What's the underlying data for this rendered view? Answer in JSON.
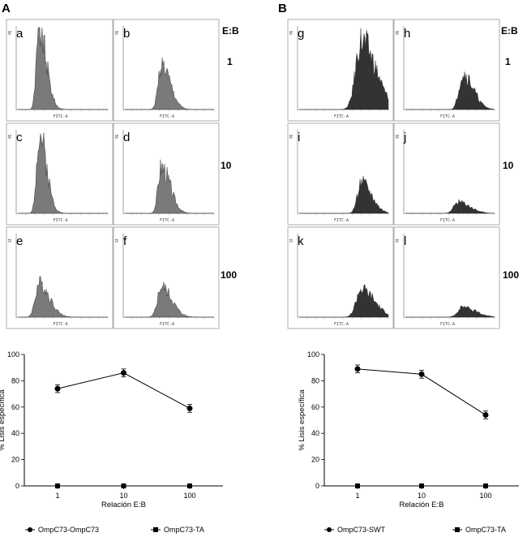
{
  "panels": {
    "A": "A",
    "B": "B"
  },
  "eb_header": "E:B",
  "ratios": [
    "1",
    "10",
    "100"
  ],
  "histograms": {
    "A": [
      {
        "letter": "a",
        "ymax": "50",
        "xlabel": "FITC-A",
        "color": "#7a7a7a",
        "level": 1.0,
        "pos": 0.25,
        "width": 0.05
      },
      {
        "letter": "b",
        "ymax": "50",
        "xlabel": "FITC-A",
        "color": "#7a7a7a",
        "level": 0.55,
        "pos": 0.42,
        "width": 0.06
      },
      {
        "letter": "c",
        "ymax": "50",
        "xlabel": "FITC-A",
        "color": "#7a7a7a",
        "level": 1.0,
        "pos": 0.25,
        "width": 0.05
      },
      {
        "letter": "d",
        "ymax": "50",
        "xlabel": "FITC-A",
        "color": "#7a7a7a",
        "level": 0.58,
        "pos": 0.42,
        "width": 0.06
      },
      {
        "letter": "e",
        "ymax": "15",
        "xlabel": "FITC-A",
        "color": "#7a7a7a",
        "level": 0.42,
        "pos": 0.25,
        "width": 0.07
      },
      {
        "letter": "f",
        "ymax": "15",
        "xlabel": "FITC-A",
        "color": "#7a7a7a",
        "level": 0.38,
        "pos": 0.42,
        "width": 0.07
      }
    ],
    "B": [
      {
        "letter": "g",
        "ymax": "50",
        "xlabel": "FITC-A",
        "color": "#333333",
        "level": 0.85,
        "pos": 0.7,
        "width": 0.1
      },
      {
        "letter": "h",
        "ymax": "50",
        "xlabel": "FITC-A",
        "color": "#333333",
        "level": 0.45,
        "pos": 0.65,
        "width": 0.07
      },
      {
        "letter": "i",
        "ymax": "50",
        "xlabel": "FITC-A",
        "color": "#333333",
        "level": 0.38,
        "pos": 0.7,
        "width": 0.07
      },
      {
        "letter": "j",
        "ymax": "50",
        "xlabel": "FITC-A",
        "color": "#333333",
        "level": 0.14,
        "pos": 0.6,
        "width": 0.08
      },
      {
        "letter": "k",
        "ymax": "15",
        "xlabel": "FITC-A",
        "color": "#333333",
        "level": 0.35,
        "pos": 0.7,
        "width": 0.09
      },
      {
        "letter": "l",
        "ymax": "10",
        "xlabel": "FITC-A",
        "color": "#333333",
        "level": 0.12,
        "pos": 0.65,
        "width": 0.09
      }
    ]
  },
  "chart_data": [
    {
      "type": "line",
      "categories": [
        "1",
        "10",
        "100"
      ],
      "xlabel": "Relación E:B",
      "ylabel": "% Lisis específica",
      "ylim": [
        0,
        100
      ],
      "yticks": [
        0,
        20,
        40,
        60,
        80,
        100
      ],
      "series": [
        {
          "name": "OmpC73-OmpC73",
          "values": [
            74,
            86,
            59
          ],
          "errors": [
            3,
            3,
            3
          ],
          "marker": "circle"
        },
        {
          "name": "OmpC73-TA",
          "values": [
            0,
            0,
            0
          ],
          "marker": "square"
        }
      ]
    },
    {
      "type": "line",
      "categories": [
        "1",
        "10",
        "100"
      ],
      "xlabel": "Relación E:B",
      "ylabel": "% Lisis específica",
      "ylim": [
        0,
        100
      ],
      "yticks": [
        0,
        20,
        40,
        60,
        80,
        100
      ],
      "series": [
        {
          "name": "OmpC73-SWT",
          "values": [
            89,
            85,
            54
          ],
          "errors": [
            3,
            3,
            3
          ],
          "marker": "circle"
        },
        {
          "name": "OmpC73-TA",
          "values": [
            0,
            0,
            0
          ],
          "marker": "square"
        }
      ]
    }
  ]
}
